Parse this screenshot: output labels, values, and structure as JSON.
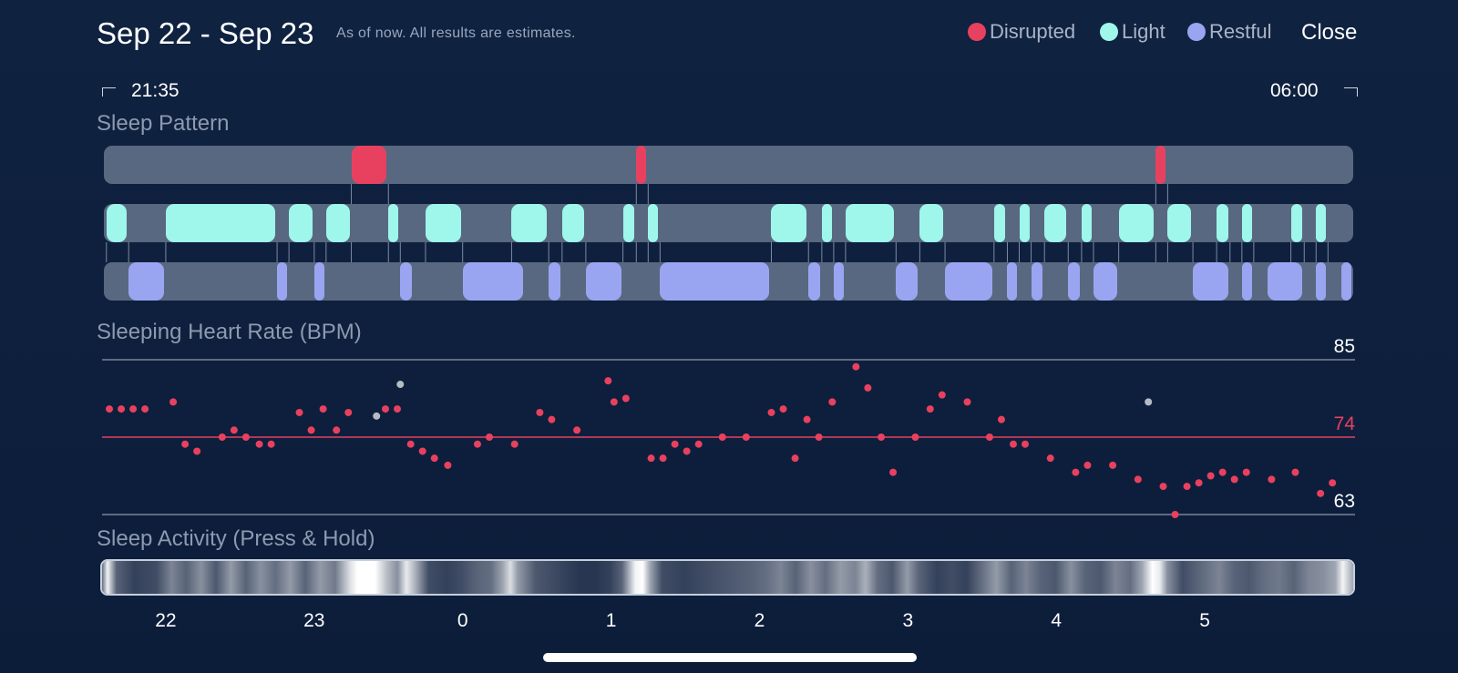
{
  "header": {
    "title": "Sep 22 - Sep 23",
    "note": "As of now. All results are estimates.",
    "close_label": "Close"
  },
  "legend": [
    {
      "label": "Disrupted",
      "color": "#e8415f"
    },
    {
      "label": "Light",
      "color": "#9ef7ea"
    },
    {
      "label": "Restful",
      "color": "#9aa5f2"
    }
  ],
  "timeline": {
    "start": "21:35",
    "end": "06:00"
  },
  "sections": {
    "sleep_pattern": "Sleep Pattern",
    "heart_rate": "Sleeping Heart Rate (BPM)",
    "activity": "Sleep Activity (Press & Hold)"
  },
  "colors": {
    "disrupted": "#e8415f",
    "light": "#9ef7ea",
    "restful": "#9aa5f2",
    "track": "#586880",
    "hr_dot": "#e8415f",
    "hr_dot_outlier": "#b5bcc6",
    "background": "#0f2240"
  },
  "chart_data": [
    {
      "type": "timeline",
      "title": "Sleep Pattern",
      "x_range_hours": [
        21.583,
        30.0
      ],
      "series": [
        {
          "name": "Disrupted",
          "intervals": [
            [
              23.25,
              23.5
            ],
            [
              25.17,
              25.25
            ],
            [
              28.67,
              28.75
            ]
          ]
        },
        {
          "name": "Light",
          "intervals": [
            [
              21.6,
              21.75
            ],
            [
              22.0,
              22.75
            ],
            [
              22.83,
              23.0
            ],
            [
              23.08,
              23.25
            ],
            [
              23.5,
              23.58
            ],
            [
              23.75,
              24.0
            ],
            [
              24.33,
              24.58
            ],
            [
              24.67,
              24.83
            ],
            [
              25.08,
              25.17
            ],
            [
              25.25,
              25.33
            ],
            [
              26.08,
              26.33
            ],
            [
              26.42,
              26.5
            ],
            [
              26.58,
              26.92
            ],
            [
              27.08,
              27.25
            ],
            [
              27.58,
              27.67
            ],
            [
              27.75,
              27.83
            ],
            [
              27.92,
              28.08
            ],
            [
              28.17,
              28.25
            ],
            [
              28.42,
              28.67
            ],
            [
              28.75,
              28.92
            ],
            [
              29.08,
              29.17
            ],
            [
              29.25,
              29.33
            ],
            [
              29.58,
              29.67
            ],
            [
              29.75,
              29.83
            ]
          ]
        },
        {
          "name": "Restful",
          "intervals": [
            [
              21.75,
              22.0
            ],
            [
              22.75,
              22.83
            ],
            [
              23.0,
              23.08
            ],
            [
              23.58,
              23.67
            ],
            [
              24.0,
              24.42
            ],
            [
              24.58,
              24.67
            ],
            [
              24.83,
              25.08
            ],
            [
              25.33,
              26.08
            ],
            [
              26.33,
              26.42
            ],
            [
              26.5,
              26.58
            ],
            [
              26.92,
              27.08
            ],
            [
              27.25,
              27.58
            ],
            [
              27.67,
              27.75
            ],
            [
              27.83,
              27.92
            ],
            [
              28.08,
              28.17
            ],
            [
              28.25,
              28.42
            ],
            [
              28.92,
              29.17
            ],
            [
              29.25,
              29.33
            ],
            [
              29.42,
              29.67
            ],
            [
              29.75,
              29.83
            ],
            [
              29.92,
              30.0
            ]
          ]
        }
      ]
    },
    {
      "type": "scatter",
      "title": "Sleeping Heart Rate (BPM)",
      "ylim": [
        63,
        85
      ],
      "y_reference_lines": [
        85,
        74,
        63
      ],
      "y_labels": [
        "85",
        "74",
        "63"
      ],
      "x_range_hours": [
        21.583,
        30.0
      ],
      "points": [
        [
          21.62,
          78
        ],
        [
          21.7,
          78
        ],
        [
          21.78,
          78
        ],
        [
          21.86,
          78
        ],
        [
          22.05,
          79
        ],
        [
          22.13,
          73
        ],
        [
          22.21,
          72
        ],
        [
          22.38,
          74
        ],
        [
          22.46,
          75
        ],
        [
          22.54,
          74
        ],
        [
          22.63,
          73
        ],
        [
          22.71,
          73
        ],
        [
          22.9,
          77.5
        ],
        [
          22.98,
          75
        ],
        [
          23.06,
          78
        ],
        [
          23.15,
          75
        ],
        [
          23.23,
          77.5
        ],
        [
          23.48,
          78
        ],
        [
          23.56,
          78
        ],
        [
          23.65,
          73
        ],
        [
          23.73,
          72
        ],
        [
          23.81,
          71
        ],
        [
          23.9,
          70
        ],
        [
          24.1,
          73
        ],
        [
          24.18,
          74
        ],
        [
          24.35,
          73
        ],
        [
          24.52,
          77.5
        ],
        [
          24.6,
          76.5
        ],
        [
          24.77,
          75
        ],
        [
          24.98,
          82
        ],
        [
          25.02,
          79
        ],
        [
          25.1,
          79.5
        ],
        [
          25.27,
          71
        ],
        [
          25.35,
          71
        ],
        [
          25.43,
          73
        ],
        [
          25.51,
          72
        ],
        [
          25.59,
          73
        ],
        [
          25.75,
          74
        ],
        [
          25.91,
          74
        ],
        [
          26.08,
          77.5
        ],
        [
          26.16,
          78
        ],
        [
          26.24,
          71
        ],
        [
          26.32,
          76.5
        ],
        [
          26.4,
          74
        ],
        [
          26.49,
          79
        ],
        [
          26.65,
          84
        ],
        [
          26.73,
          81
        ],
        [
          26.82,
          74
        ],
        [
          26.9,
          69
        ],
        [
          27.05,
          74
        ],
        [
          27.15,
          78
        ],
        [
          27.23,
          80
        ],
        [
          27.4,
          79
        ],
        [
          27.55,
          74
        ],
        [
          27.63,
          76.5
        ],
        [
          27.71,
          73
        ],
        [
          27.79,
          73
        ],
        [
          27.96,
          71
        ],
        [
          28.13,
          69
        ],
        [
          28.21,
          70
        ],
        [
          28.38,
          70
        ],
        [
          28.55,
          68
        ],
        [
          28.72,
          67
        ],
        [
          28.8,
          63
        ],
        [
          28.88,
          67
        ],
        [
          28.96,
          67.5
        ],
        [
          29.04,
          68.5
        ],
        [
          29.12,
          69
        ],
        [
          29.2,
          68
        ],
        [
          29.28,
          69
        ],
        [
          29.45,
          68
        ],
        [
          29.61,
          69
        ],
        [
          29.78,
          66
        ],
        [
          29.86,
          67.5
        ]
      ],
      "outlier_points": [
        [
          23.42,
          77
        ],
        [
          23.58,
          81.5
        ],
        [
          28.62,
          79
        ]
      ]
    },
    {
      "type": "heatmap",
      "title": "Sleep Activity (Press & Hold)",
      "x_tick_labels": [
        "22",
        "23",
        "0",
        "1",
        "2",
        "3",
        "4",
        "5"
      ],
      "x_ticks_hours": [
        22,
        23,
        24,
        25,
        26,
        27,
        28,
        29
      ],
      "x_range_hours": [
        21.583,
        30.0
      ],
      "intensity": [
        [
          21.58,
          0.35
        ],
        [
          21.62,
          0.95
        ],
        [
          21.68,
          0.3
        ],
        [
          21.8,
          0.15
        ],
        [
          21.95,
          0.2
        ],
        [
          22.05,
          0.45
        ],
        [
          22.15,
          0.3
        ],
        [
          22.25,
          0.5
        ],
        [
          22.35,
          0.25
        ],
        [
          22.45,
          0.55
        ],
        [
          22.55,
          0.3
        ],
        [
          22.65,
          0.5
        ],
        [
          22.75,
          0.35
        ],
        [
          22.85,
          0.55
        ],
        [
          22.95,
          0.3
        ],
        [
          23.05,
          0.55
        ],
        [
          23.15,
          0.4
        ],
        [
          23.25,
          0.85
        ],
        [
          23.3,
          1.0
        ],
        [
          23.42,
          1.0
        ],
        [
          23.5,
          0.7
        ],
        [
          23.57,
          0.5
        ],
        [
          23.63,
          0.9
        ],
        [
          23.68,
          0.7
        ],
        [
          23.78,
          0.2
        ],
        [
          23.9,
          0.15
        ],
        [
          24.0,
          0.2
        ],
        [
          24.1,
          0.3
        ],
        [
          24.2,
          0.35
        ],
        [
          24.28,
          0.6
        ],
        [
          24.33,
          0.85
        ],
        [
          24.38,
          0.55
        ],
        [
          24.5,
          0.25
        ],
        [
          24.6,
          0.2
        ],
        [
          24.7,
          0.15
        ],
        [
          24.8,
          0.1
        ],
        [
          24.9,
          0.1
        ],
        [
          25.0,
          0.15
        ],
        [
          25.08,
          0.3
        ],
        [
          25.17,
          0.95
        ],
        [
          25.22,
          1.0
        ],
        [
          25.27,
          0.6
        ],
        [
          25.35,
          0.2
        ],
        [
          25.5,
          0.15
        ],
        [
          25.65,
          0.2
        ],
        [
          25.8,
          0.25
        ],
        [
          25.95,
          0.3
        ],
        [
          26.05,
          0.35
        ],
        [
          26.15,
          0.45
        ],
        [
          26.25,
          0.3
        ],
        [
          26.35,
          0.5
        ],
        [
          26.45,
          0.35
        ],
        [
          26.55,
          0.55
        ],
        [
          26.65,
          0.45
        ],
        [
          26.72,
          0.65
        ],
        [
          26.8,
          0.35
        ],
        [
          26.9,
          0.25
        ],
        [
          27.0,
          0.55
        ],
        [
          27.08,
          0.3
        ],
        [
          27.2,
          0.15
        ],
        [
          27.3,
          0.2
        ],
        [
          27.4,
          0.15
        ],
        [
          27.5,
          0.35
        ],
        [
          27.6,
          0.55
        ],
        [
          27.7,
          0.3
        ],
        [
          27.8,
          0.45
        ],
        [
          27.9,
          0.3
        ],
        [
          28.0,
          0.25
        ],
        [
          28.1,
          0.5
        ],
        [
          28.2,
          0.3
        ],
        [
          28.3,
          0.25
        ],
        [
          28.4,
          0.45
        ],
        [
          28.5,
          0.35
        ],
        [
          28.58,
          0.6
        ],
        [
          28.65,
          1.0
        ],
        [
          28.7,
          0.9
        ],
        [
          28.75,
          0.5
        ],
        [
          28.85,
          0.2
        ],
        [
          29.0,
          0.35
        ],
        [
          29.1,
          0.45
        ],
        [
          29.2,
          0.3
        ],
        [
          29.3,
          0.25
        ],
        [
          29.4,
          0.35
        ],
        [
          29.5,
          0.4
        ],
        [
          29.6,
          0.3
        ],
        [
          29.7,
          0.45
        ],
        [
          29.8,
          0.5
        ],
        [
          29.88,
          0.6
        ],
        [
          29.93,
          0.95
        ],
        [
          30.0,
          0.6
        ]
      ]
    }
  ]
}
